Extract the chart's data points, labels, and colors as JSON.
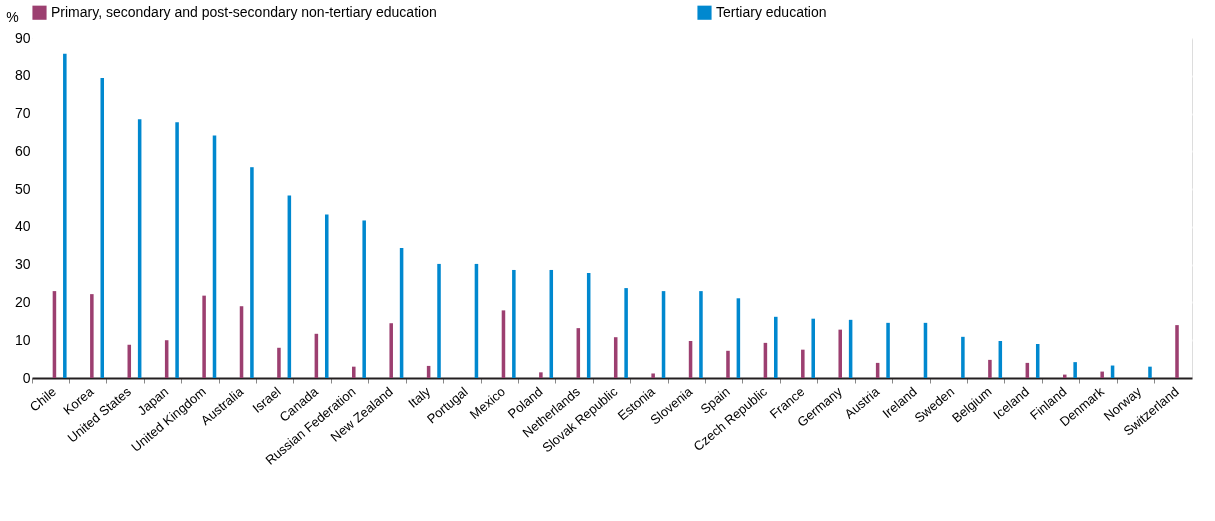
{
  "chart_data": {
    "type": "bar",
    "ylabel": "%",
    "categories": [
      "Chile",
      "Korea",
      "United States",
      "Japan",
      "United Kingdom",
      "Australia",
      "Israel",
      "Canada",
      "Russian Federation",
      "New Zealand",
      "Italy",
      "Portugal",
      "Mexico",
      "Poland",
      "Netherlands",
      "Slovak Republic",
      "Estonia",
      "Slovenia",
      "Spain",
      "Czech Republic",
      "France",
      "Germany",
      "Austria",
      "Ireland",
      "Sweden",
      "Belgium",
      "Iceland",
      "Finland",
      "Denmark",
      "Norway",
      "Switzerland"
    ],
    "series": [
      {
        "name": "Primary, secondary and post-secondary non-tertiary education",
        "color": "#9c3f70",
        "values": [
          23,
          22.2,
          8.8,
          10,
          21.8,
          19,
          8,
          11.7,
          3,
          14.5,
          3.2,
          null,
          17.9,
          1.5,
          13.2,
          10.8,
          1.2,
          9.8,
          7.2,
          9.3,
          7.5,
          12.8,
          4,
          null,
          null,
          4.8,
          4,
          0.9,
          1.7,
          null,
          14
        ]
      },
      {
        "name": "Tertiary education",
        "color": "#0088cf",
        "values": [
          85.8,
          79.4,
          68.5,
          67.7,
          64.2,
          55.8,
          48.3,
          43.3,
          41.7,
          34.4,
          30.2,
          30.2,
          28.6,
          28.6,
          27.8,
          23.8,
          23,
          23,
          21.1,
          16.2,
          15.7,
          15.4,
          14.6,
          14.6,
          10.9,
          9.8,
          9,
          4.2,
          3.3,
          3,
          null
        ]
      }
    ],
    "ylim": [
      0,
      90
    ],
    "yticks": [
      0,
      10,
      20,
      30,
      40,
      50,
      60,
      70,
      80,
      90
    ],
    "grid": true,
    "legend": "top"
  }
}
